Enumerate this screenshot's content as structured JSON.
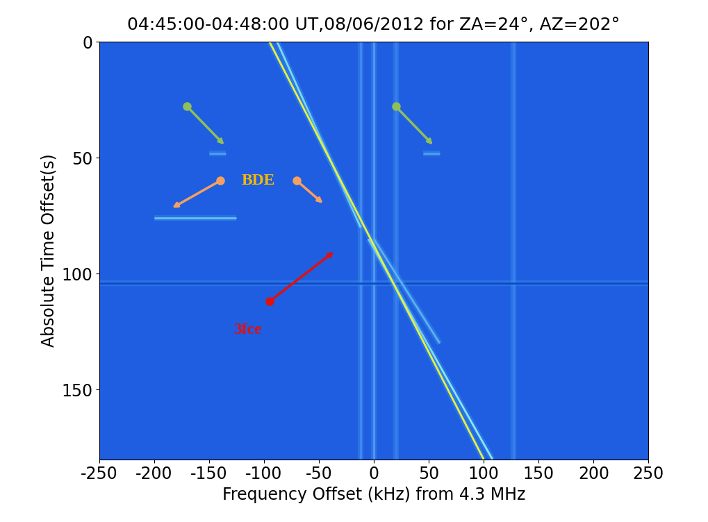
{
  "chart_data": {
    "type": "line",
    "title": "04:45:00-04:48:00 UT,08/06/2012 for ZA=24°, AZ=202°",
    "x_label": "Frequency Offset (kHz) from 4.3 MHz",
    "y_label": "Absolute Time Offset(s)",
    "xlim": [
      -250,
      250
    ],
    "xticks": [
      -250,
      -200,
      -150,
      -100,
      -50,
      0,
      50,
      100,
      150,
      200,
      250
    ],
    "ylim": [
      180,
      0
    ],
    "yticks": [
      0,
      50,
      100,
      150
    ],
    "annotations": [
      "BDE",
      "3fce"
    ],
    "series": [
      {
        "color": "#4a86f0",
        "x": [
          -12,
          -12
        ],
        "values": [
          0,
          180
        ]
      },
      {
        "color": "#5a96f4",
        "x": [
          0,
          0
        ],
        "values": [
          0,
          180
        ]
      },
      {
        "color": "#3f7cee",
        "x": [
          20,
          20
        ],
        "values": [
          0,
          180
        ]
      },
      {
        "color": "#3f7cee",
        "x": [
          127,
          127
        ],
        "values": [
          0,
          180
        ]
      },
      {
        "color": "#1446c8",
        "x": [
          -250,
          250
        ],
        "values": [
          104,
          104
        ]
      },
      {
        "color": "#5fb0f0",
        "x": [
          0,
          60
        ],
        "values": [
          85,
          130
        ]
      },
      {
        "color": "#6cc0f0",
        "x": [
          -200,
          -125
        ],
        "values": [
          76,
          76
        ]
      },
      {
        "color": "#4f9ef0",
        "x": [
          -150,
          -135
        ],
        "values": [
          48,
          48
        ]
      },
      {
        "color": "#4f9ef0",
        "x": [
          45,
          60
        ],
        "values": [
          48,
          48
        ]
      },
      {
        "color": "#7fd8f0",
        "x": [
          -88,
          -12
        ],
        "values": [
          0,
          80
        ]
      },
      {
        "color": "#8fe4f5",
        "x": [
          -5,
          108
        ],
        "values": [
          85,
          180
        ]
      },
      {
        "color": "#e8f040",
        "x": [
          -95,
          100
        ],
        "values": [
          0,
          180
        ]
      }
    ]
  }
}
